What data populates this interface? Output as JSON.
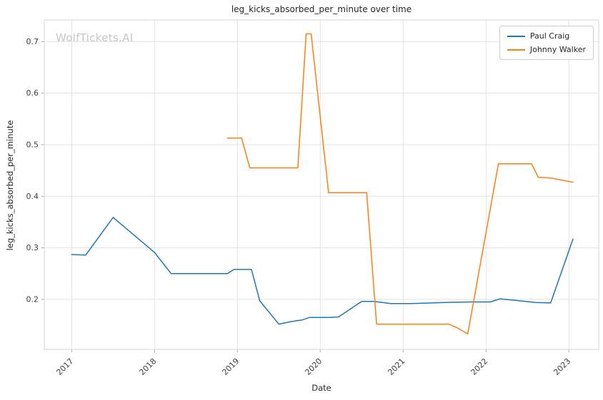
{
  "chart_data": {
    "type": "line",
    "title": "leg_kicks_absorbed_per_minute over time",
    "xlabel": "Date",
    "ylabel": "leg_kicks_absorbed_per_minute",
    "watermark": "WolfTickets.AI",
    "grid": true,
    "legend_position": "upper right",
    "xlim": [
      2016.67,
      2023.36
    ],
    "ylim": [
      0.103,
      0.742
    ],
    "xticks": [
      2017,
      2018,
      2019,
      2020,
      2021,
      2022,
      2023
    ],
    "yticks": [
      0.2,
      0.3,
      0.4,
      0.5,
      0.6,
      0.7
    ],
    "series": [
      {
        "name": "Paul Craig",
        "color": "#1f77b4",
        "x": [
          2017.0,
          2017.17,
          2017.5,
          2018.0,
          2018.2,
          2018.88,
          2018.96,
          2019.17,
          2019.27,
          2019.5,
          2019.65,
          2019.78,
          2019.87,
          2020.1,
          2020.22,
          2020.5,
          2020.65,
          2020.85,
          2021.1,
          2021.5,
          2021.8,
          2022.05,
          2022.17,
          2022.42,
          2022.6,
          2022.78,
          2023.05
        ],
        "y": [
          0.287,
          0.286,
          0.359,
          0.291,
          0.25,
          0.25,
          0.258,
          0.258,
          0.197,
          0.152,
          0.157,
          0.16,
          0.165,
          0.165,
          0.166,
          0.196,
          0.196,
          0.192,
          0.192,
          0.194,
          0.195,
          0.195,
          0.201,
          0.197,
          0.194,
          0.193,
          0.317
        ]
      },
      {
        "name": "Johnny Walker",
        "color": "#ff7f0e",
        "x": [
          2018.88,
          2019.05,
          2019.15,
          2019.55,
          2019.73,
          2019.83,
          2019.89,
          2020.1,
          2020.3,
          2020.56,
          2020.68,
          2021.0,
          2021.3,
          2021.55,
          2021.65,
          2021.78,
          2022.15,
          2022.42,
          2022.55,
          2022.63,
          2022.8,
          2023.05
        ],
        "y": [
          0.513,
          0.513,
          0.455,
          0.455,
          0.455,
          0.715,
          0.715,
          0.407,
          0.407,
          0.407,
          0.152,
          0.152,
          0.152,
          0.152,
          0.145,
          0.133,
          0.463,
          0.463,
          0.463,
          0.437,
          0.435,
          0.427
        ]
      }
    ]
  }
}
